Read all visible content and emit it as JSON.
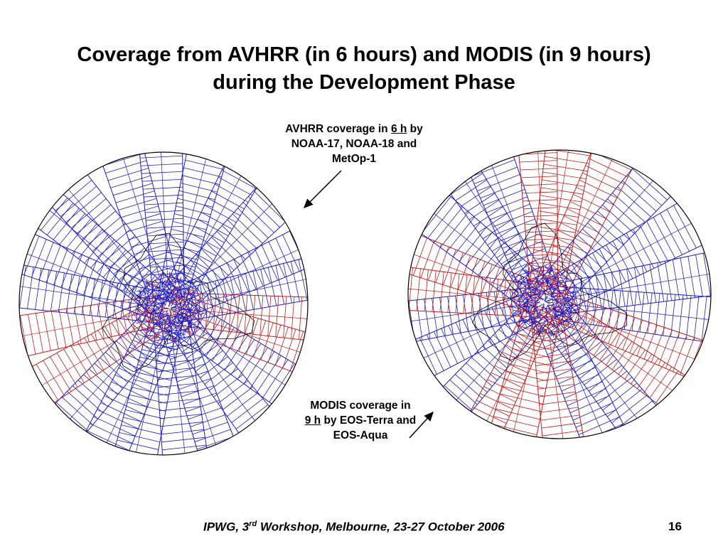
{
  "title": {
    "line1": "Coverage from AVHRR (in 6 hours) and MODIS (in 9 hours)",
    "line2": "during the Development Phase"
  },
  "callout_avhrr": {
    "pre": "AVHRR coverage in ",
    "highlight": "6 h",
    "post": " by",
    "line2": "NOAA-17, NOAA-18 and",
    "line3": "MetOp-1"
  },
  "callout_modis": {
    "line1": "MODIS coverage in",
    "highlight": "9 h",
    "post": " by EOS-Terra and",
    "line3": "EOS-Aqua"
  },
  "footer": {
    "pre": "IPWG, 3",
    "sup": "rd",
    "post": " Workshop, Melbourne, 23-27 October 2006"
  },
  "page_number": "16",
  "colors": {
    "avhrr_swath": "#1c1cc4",
    "modis_swath": "#c41c1c",
    "coastline": "#000000",
    "background": "#ffffff"
  }
}
